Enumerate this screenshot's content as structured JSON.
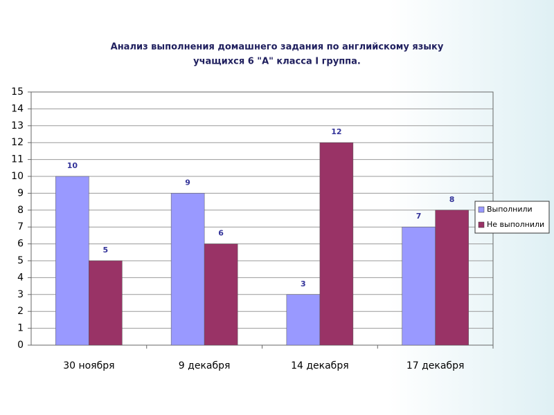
{
  "chart_data": {
    "type": "bar",
    "title": [
      "Анализ выполнения домашнего задания по английскому языку",
      "учащихся 6 \"А\" класса I группа."
    ],
    "categories": [
      "30 ноября",
      "9 декабря",
      "14 декабря",
      "17 декабря"
    ],
    "series": [
      {
        "name": "Выполнили",
        "color": "#9999ff",
        "values": [
          10,
          9,
          3,
          7
        ]
      },
      {
        "name": "Не выполнили",
        "color": "#993366",
        "values": [
          5,
          6,
          12,
          8
        ]
      }
    ],
    "ylim": [
      0,
      15
    ],
    "yticks": [
      0,
      1,
      2,
      3,
      4,
      5,
      6,
      7,
      8,
      9,
      10,
      11,
      12,
      13,
      14,
      15
    ],
    "grid": true,
    "legend": "right",
    "data_labels": true
  }
}
